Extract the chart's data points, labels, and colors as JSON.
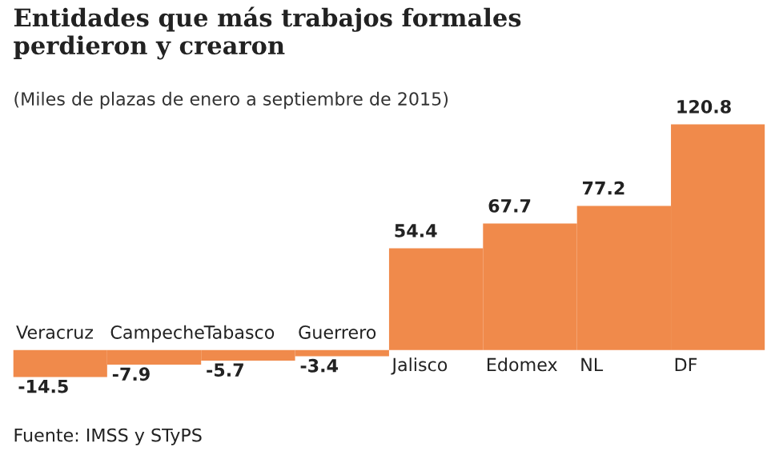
{
  "chart_data": {
    "type": "bar",
    "title": "Entidades que más trabajos formales\nperdieron y crearon",
    "subtitle": "(Miles de plazas de enero a septiembre de 2015)",
    "categories": [
      "Veracruz",
      "Campeche",
      "Tabasco",
      "Guerrero",
      "Jalisco",
      "Edomex",
      "NL",
      "DF"
    ],
    "values": [
      -14.5,
      -7.9,
      -5.7,
      -3.4,
      54.4,
      67.7,
      77.2,
      120.8
    ],
    "color": "#f08a4b",
    "data_labels": true,
    "annotations": [
      "Fuente: IMSS y STyPS"
    ]
  }
}
